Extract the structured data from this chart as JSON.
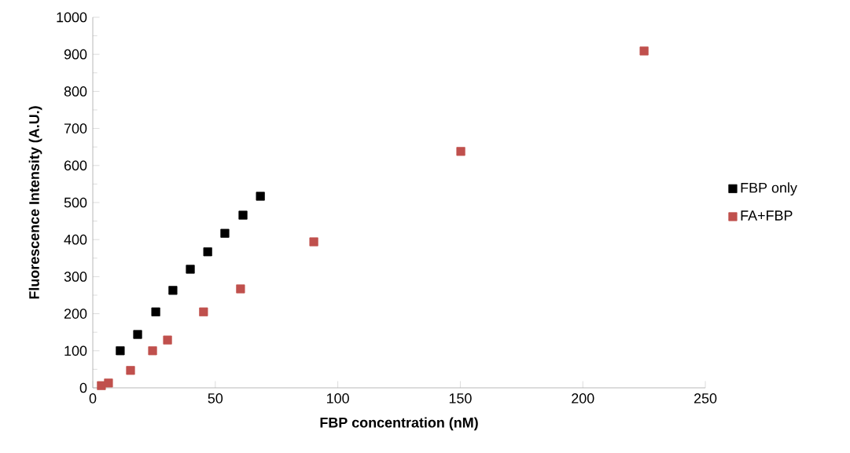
{
  "chart_data": {
    "type": "scatter",
    "xlabel": "FBP concentration (nM)",
    "ylabel": "Fluorescence Intensity (A.U.)",
    "xlim": [
      0,
      250
    ],
    "xticks": [
      0,
      50,
      100,
      150,
      200,
      250
    ],
    "ylim": [
      0,
      1000
    ],
    "yticks": [
      0,
      100,
      200,
      300,
      400,
      500,
      600,
      700,
      800,
      900,
      1000
    ],
    "marker": "square",
    "legend": "right",
    "grid": false,
    "series": [
      {
        "name": "FBP only",
        "color": "#000000",
        "x": [
          11.2,
          18.3,
          25.7,
          32.7,
          39.8,
          46.9,
          53.9,
          61.3,
          68.4
        ],
        "values": [
          100,
          144,
          205,
          263,
          320,
          367,
          417,
          466,
          517
        ]
      },
      {
        "name": "FA+FBP",
        "color": "#c0504d",
        "x": [
          3.5,
          6.4,
          15.4,
          24.4,
          30.5,
          45.2,
          60.3,
          90.2,
          150.2,
          225
        ],
        "values": [
          6,
          13,
          47,
          100,
          129,
          205,
          267,
          394,
          638,
          909
        ]
      }
    ]
  }
}
